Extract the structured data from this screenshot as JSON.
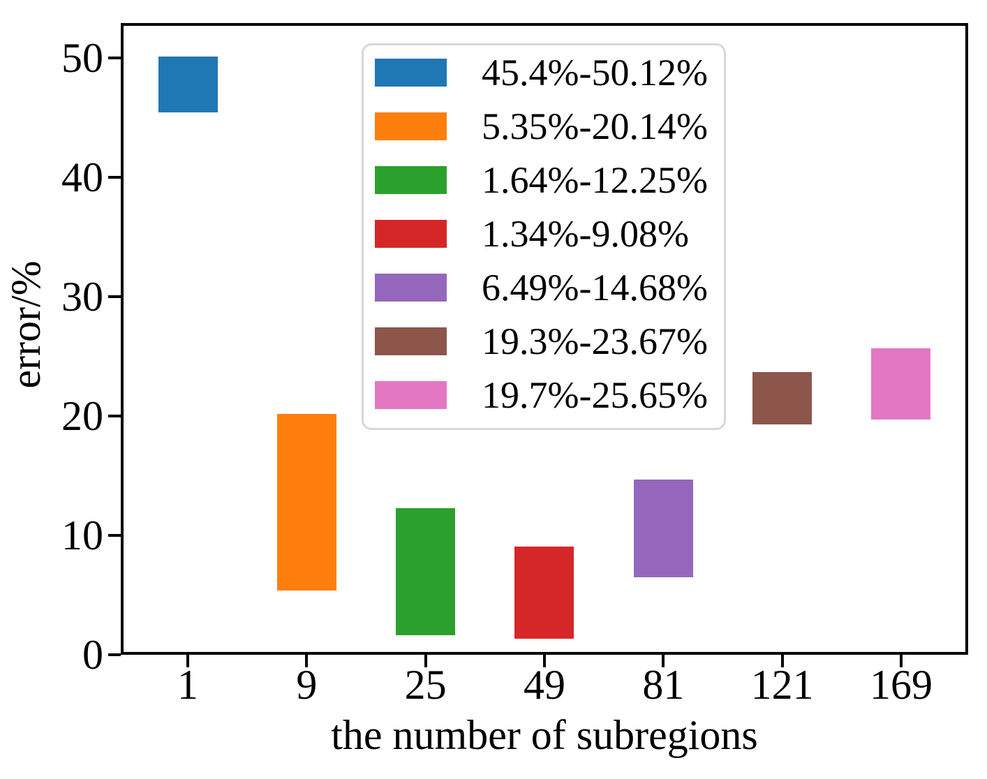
{
  "chart_data": {
    "type": "bar",
    "subtype": "floating-range-bars",
    "title": "",
    "xlabel": "the number of subregions",
    "ylabel": "error/%",
    "categories": [
      "1",
      "9",
      "25",
      "49",
      "81",
      "121",
      "169"
    ],
    "x_tick_labels": [
      "1",
      "9",
      "25",
      "49",
      "81",
      "121",
      "169"
    ],
    "y_tick_labels": [
      "0",
      "10",
      "20",
      "30",
      "40",
      "50"
    ],
    "yticks": [
      0,
      10,
      20,
      30,
      40,
      50
    ],
    "ylim": [
      0,
      52.9
    ],
    "grid": false,
    "legend_position": "upper-center-inside",
    "series": [
      {
        "category": "1",
        "low": 45.4,
        "high": 50.12,
        "label": "45.4%-50.12%",
        "color": "#1f77b4",
        "color_name": "blue"
      },
      {
        "category": "9",
        "low": 5.35,
        "high": 20.14,
        "label": "5.35%-20.14%",
        "color": "#ff7f0e",
        "color_name": "orange"
      },
      {
        "category": "25",
        "low": 1.64,
        "high": 12.25,
        "label": "1.64%-12.25%",
        "color": "#2ca02c",
        "color_name": "green"
      },
      {
        "category": "49",
        "low": 1.34,
        "high": 9.08,
        "label": "1.34%-9.08%",
        "color": "#d62728",
        "color_name": "red"
      },
      {
        "category": "81",
        "low": 6.49,
        "high": 14.68,
        "label": "6.49%-14.68%",
        "color": "#9467bd",
        "color_name": "purple"
      },
      {
        "category": "121",
        "low": 19.3,
        "high": 23.67,
        "label": "19.3%-23.67%",
        "color": "#8c564b",
        "color_name": "brown"
      },
      {
        "category": "169",
        "low": 19.7,
        "high": 25.65,
        "label": "19.7%-25.65%",
        "color": "#e377c2",
        "color_name": "pink"
      }
    ],
    "colors": {
      "axis": "#000000",
      "background": "#ffffff",
      "legend_border": "#d8d8d8"
    }
  }
}
